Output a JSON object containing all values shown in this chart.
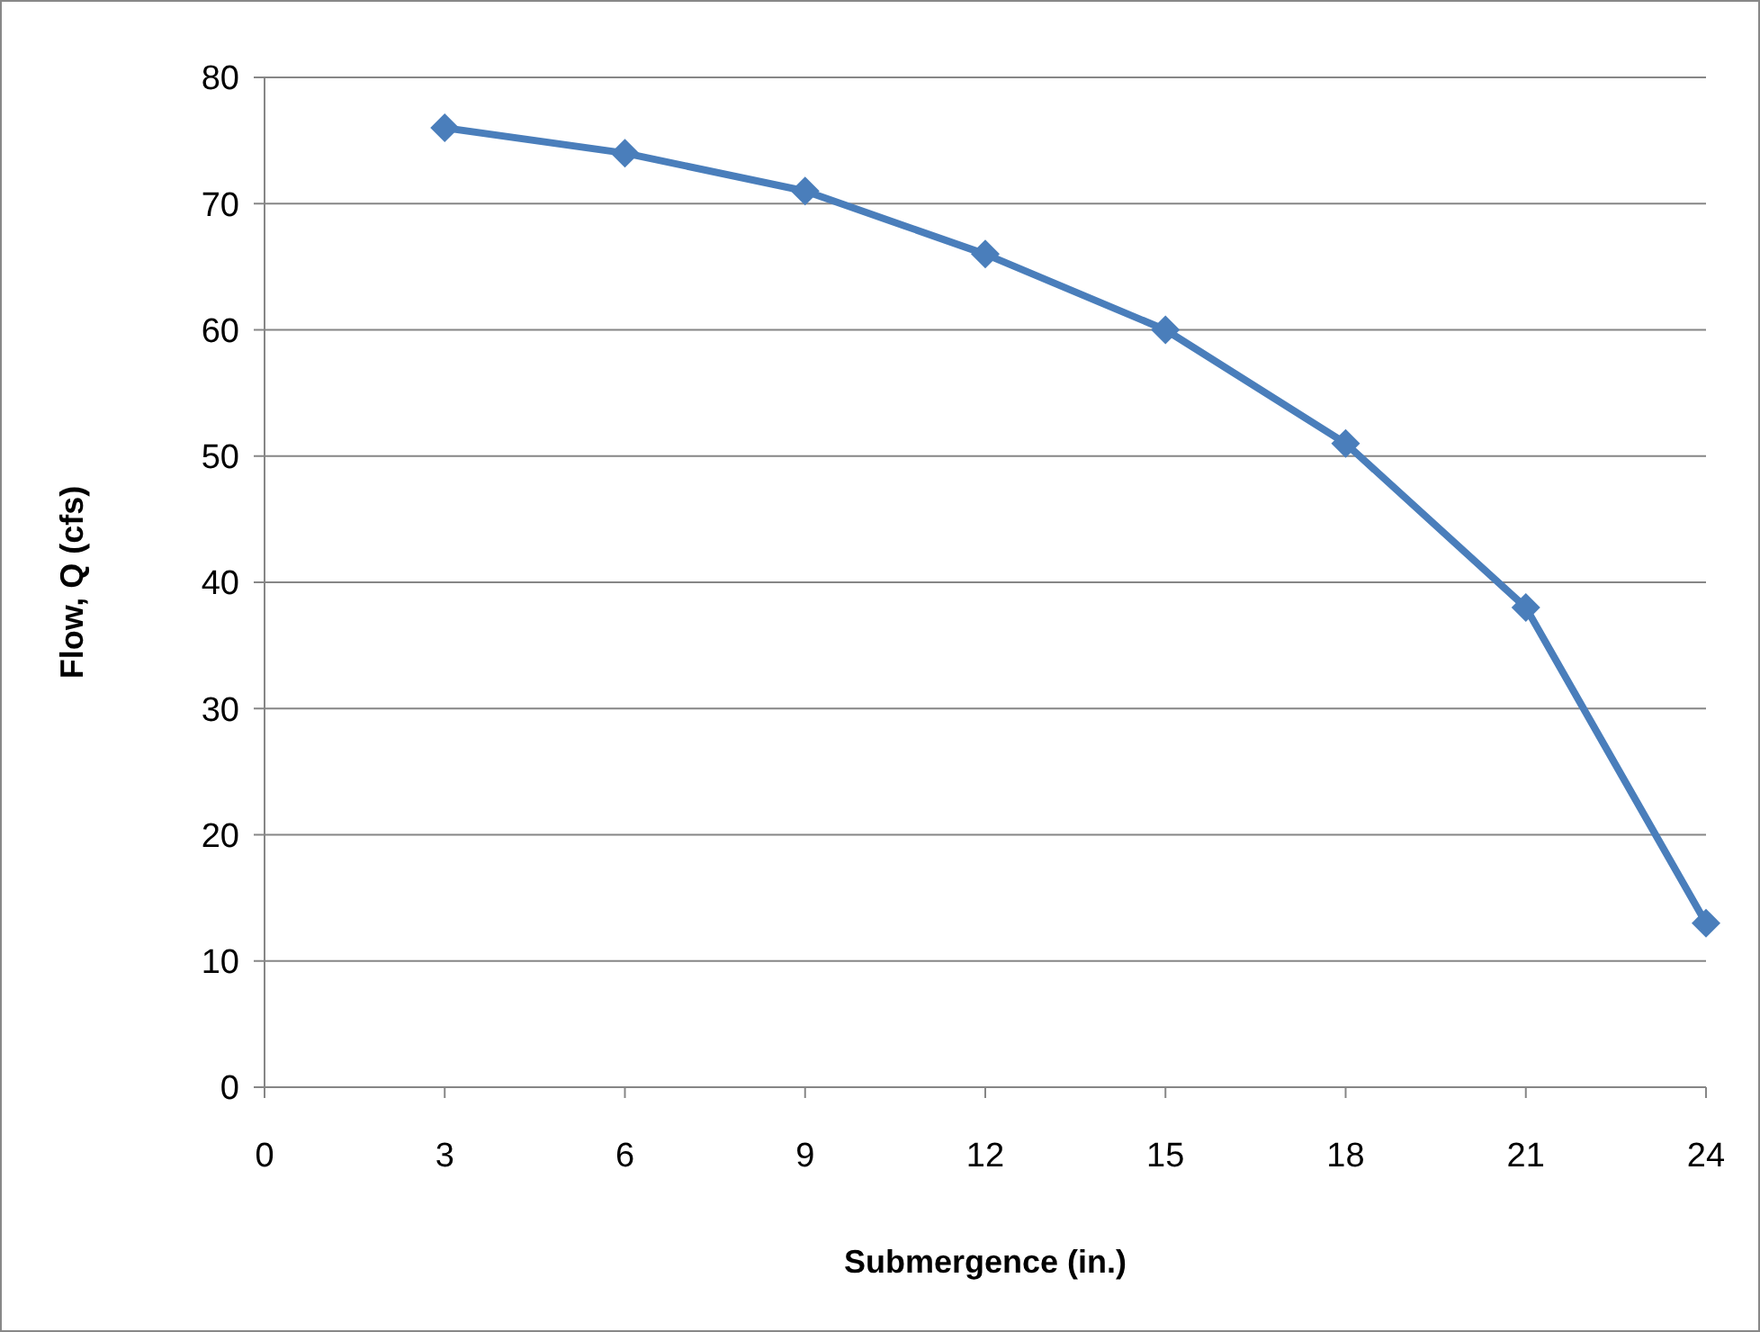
{
  "chart_data": {
    "type": "line",
    "xlabel": "Submergence (in.)",
    "ylabel": "Flow, Q (cfs)",
    "x": [
      3,
      6,
      9,
      12,
      15,
      18,
      21,
      24
    ],
    "series": [
      {
        "color": "#4a7ebb",
        "values": [
          76,
          74,
          71,
          66,
          60,
          51,
          38,
          13
        ]
      }
    ],
    "xlim": [
      0,
      24
    ],
    "xticks": [
      0,
      3,
      6,
      9,
      12,
      15,
      18,
      21,
      24
    ],
    "ylim": [
      0,
      80
    ],
    "yticks": [
      0,
      10,
      20,
      30,
      40,
      50,
      60,
      70,
      80
    ],
    "grid": "y",
    "marker": "diamond",
    "line_style": "solid"
  }
}
